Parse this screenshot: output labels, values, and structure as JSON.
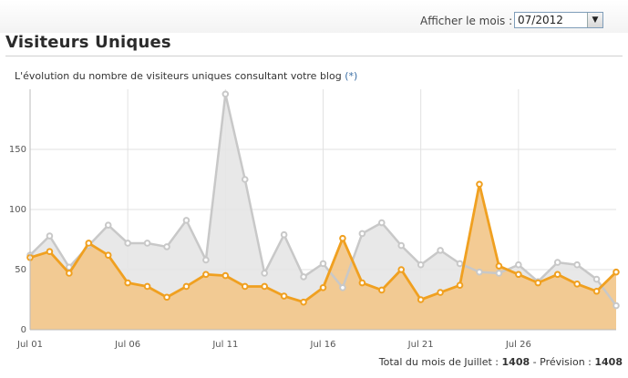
{
  "header": {
    "month_label": "Afficher le mois :",
    "month_value": "07/2012"
  },
  "title": "Visiteurs Uniques",
  "caption": {
    "text": "L'évolution du nombre de visiteurs uniques consultant votre blog",
    "note": "(*)"
  },
  "footer": {
    "total_label": "Total du mois de Juillet :",
    "total_value": "1408",
    "separator": "-",
    "forecast_label": "Prévision :",
    "forecast_value": "1408"
  },
  "chart_data": {
    "type": "area",
    "ylim": [
      0,
      200
    ],
    "yticks": [
      "0",
      "50",
      "100",
      "150"
    ],
    "ytick_values": [
      0,
      50,
      100,
      150
    ],
    "xticks": [
      {
        "day": 1,
        "label": "Jul 01"
      },
      {
        "day": 6,
        "label": "Jul 06"
      },
      {
        "day": 11,
        "label": "Jul 11"
      },
      {
        "day": 16,
        "label": "Jul 16"
      },
      {
        "day": 21,
        "label": "Jul 21"
      },
      {
        "day": 26,
        "label": "Jul 26"
      }
    ],
    "grid": true,
    "series": [
      {
        "color": "#c8c8c8",
        "fill": "#e6e6e6",
        "x": [
          1,
          2,
          3,
          4,
          5,
          6,
          7,
          8,
          9,
          10,
          11,
          12,
          13,
          14,
          15,
          16,
          17,
          18,
          19,
          20,
          21,
          22,
          23,
          24,
          25,
          26,
          27,
          28,
          29,
          30,
          31
        ],
        "values": [
          62,
          78,
          52,
          70,
          87,
          72,
          72,
          69,
          91,
          58,
          196,
          125,
          47,
          79,
          44,
          55,
          35,
          80,
          89,
          70,
          54,
          66,
          55,
          48,
          47,
          54,
          40,
          56,
          54,
          42,
          20
        ]
      },
      {
        "color": "#f0a020",
        "fill": "#f2c88e",
        "x": [
          1,
          2,
          3,
          4,
          5,
          6,
          7,
          8,
          9,
          10,
          11,
          12,
          13,
          14,
          15,
          16,
          17,
          18,
          19,
          20,
          21,
          22,
          23,
          24,
          25,
          26,
          27,
          28,
          29,
          30,
          31
        ],
        "values": [
          60,
          65,
          47,
          72,
          62,
          39,
          36,
          27,
          36,
          46,
          45,
          36,
          36,
          28,
          23,
          35,
          76,
          39,
          33,
          50,
          25,
          31,
          37,
          121,
          53,
          46,
          39,
          46,
          38,
          32,
          48
        ]
      }
    ]
  }
}
